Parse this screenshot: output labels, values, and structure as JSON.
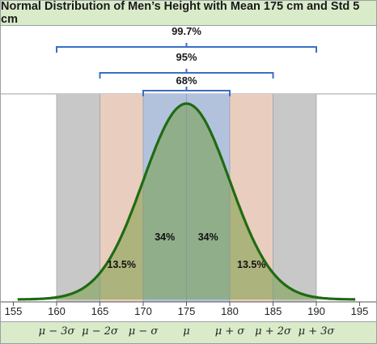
{
  "chart_data": {
    "type": "area",
    "title": "Normal Distribution of Men’s Height with Mean 175 cm and Std 5 cm",
    "mean": 175,
    "std": 5,
    "xlim": [
      154,
      196
    ],
    "xticks": [
      "155",
      "160",
      "165",
      "170",
      "175",
      "180",
      "185",
      "190",
      "195"
    ],
    "xtick_values": [
      155,
      160,
      165,
      170,
      175,
      180,
      185,
      190,
      195
    ],
    "curve_color": "#1f6b12",
    "bands": [
      {
        "from": 160,
        "to": 165,
        "color": "#c8c8c8"
      },
      {
        "from": 165,
        "to": 170,
        "color": "#e9cdbf"
      },
      {
        "from": 170,
        "to": 180,
        "color": "#b3c2dc"
      },
      {
        "from": 180,
        "to": 185,
        "color": "#e9cdbf"
      },
      {
        "from": 185,
        "to": 190,
        "color": "#c8c8c8"
      }
    ],
    "brackets": [
      {
        "label": "99.7%",
        "from": 160,
        "to": 190
      },
      {
        "label": "95%",
        "from": 165,
        "to": 185
      },
      {
        "label": "68%",
        "from": 170,
        "to": 180
      }
    ],
    "region_labels": [
      {
        "text": "13.5%",
        "x": 167.5
      },
      {
        "text": "34%",
        "x": 172.5
      },
      {
        "text": "34%",
        "x": 177.5
      },
      {
        "text": "13.5%",
        "x": 182.5
      }
    ],
    "sigma_labels": [
      {
        "text": "μ − 3σ",
        "x": 160
      },
      {
        "text": "μ − 2σ",
        "x": 165
      },
      {
        "text": "μ − σ",
        "x": 170
      },
      {
        "text": "μ",
        "x": 175
      },
      {
        "text": "μ + σ",
        "x": 180
      },
      {
        "text": "μ + 2σ",
        "x": 185
      },
      {
        "text": "μ + 3σ",
        "x": 190
      }
    ]
  }
}
